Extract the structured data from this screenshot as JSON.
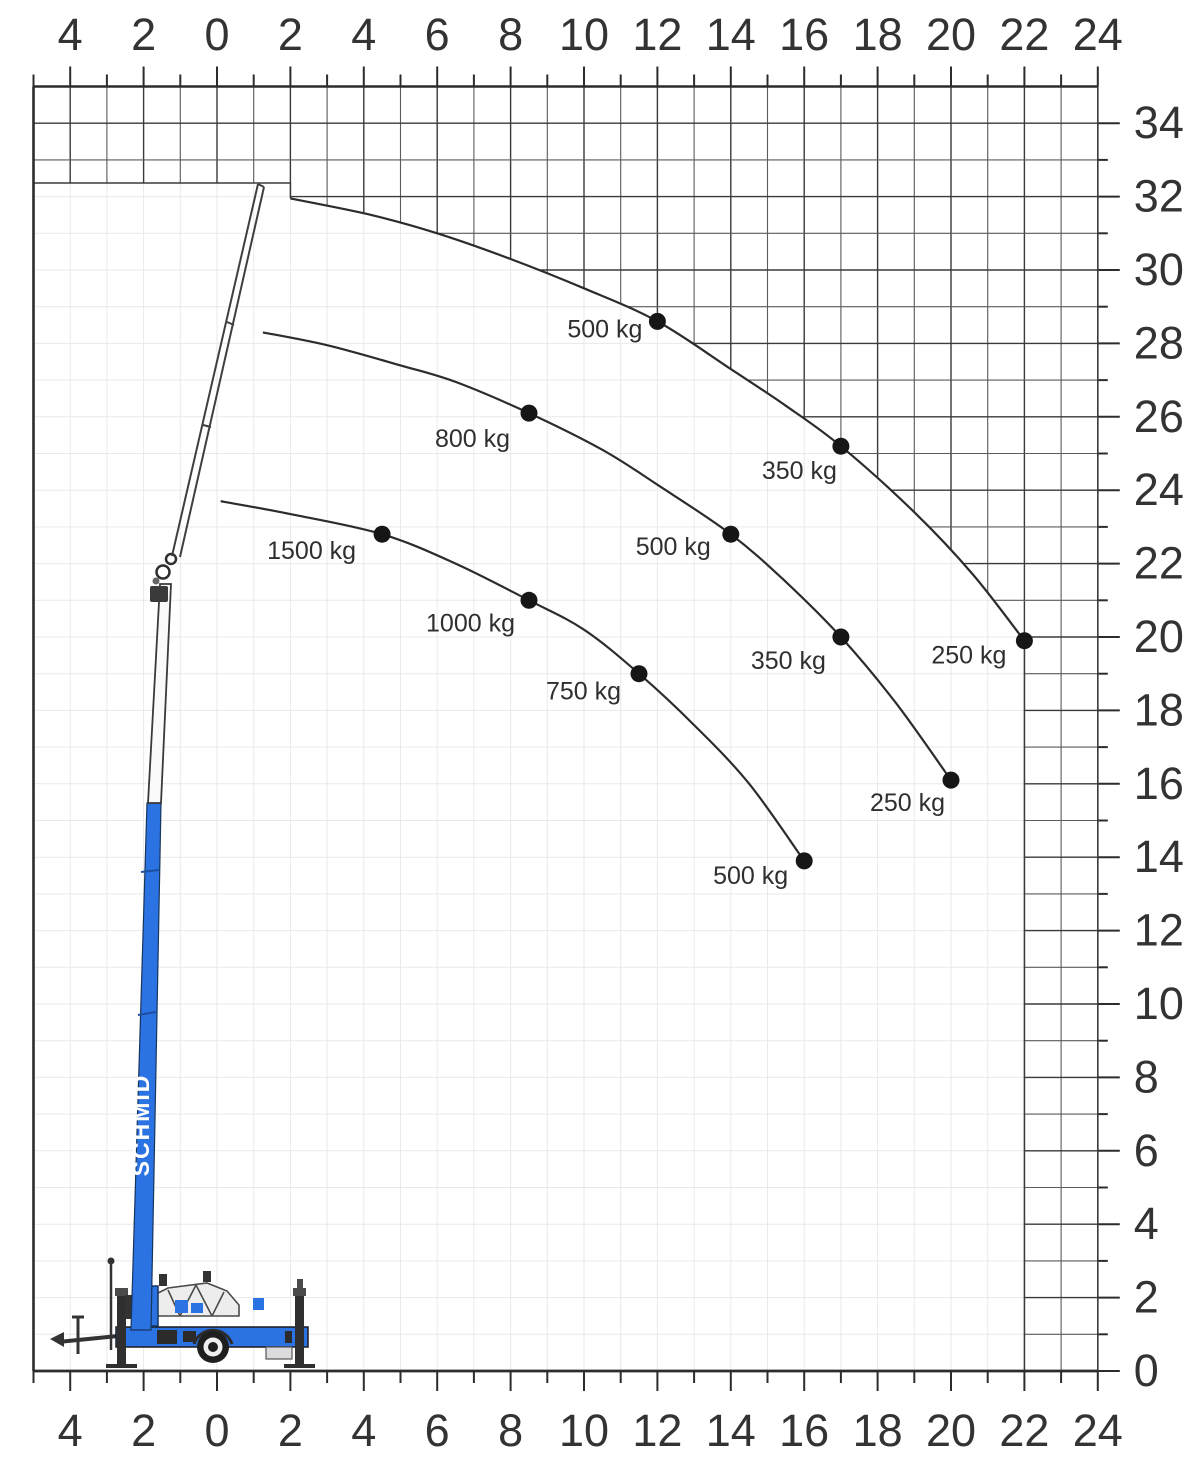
{
  "crane": {
    "brand": "SCHMID",
    "body_color": "#2b72e2"
  },
  "colors": {
    "curve": "#2c2c2c",
    "dot": "#161616",
    "grid_dark_even": "#3a3a3a",
    "grid_dark_odd": "#5c5c5c",
    "grid_faint": "#e9e9e9",
    "axis_text": "#333333",
    "border": "#2c2c2c",
    "background": "#ffffff"
  },
  "chart_data": {
    "type": "line",
    "title": "",
    "xlabel": "",
    "ylabel": "",
    "x_axis": {
      "range": [
        -5,
        24
      ],
      "minor_step": 1,
      "tick_values": [
        -4,
        -2,
        0,
        2,
        4,
        6,
        8,
        10,
        12,
        14,
        16,
        18,
        20,
        22,
        24
      ],
      "tick_labels": [
        "4",
        "2",
        "0",
        "2",
        "4",
        "6",
        "8",
        "10",
        "12",
        "14",
        "16",
        "18",
        "20",
        "22",
        "24"
      ],
      "shown_on": [
        "top",
        "bottom"
      ]
    },
    "y_axis": {
      "range": [
        0,
        35
      ],
      "minor_step": 1,
      "tick_values": [
        34,
        32,
        30,
        28,
        26,
        24,
        22,
        20,
        18,
        16,
        14,
        12,
        10,
        8,
        6,
        4,
        2,
        0
      ],
      "tick_labels": [
        "34",
        "32",
        "30",
        "28",
        "26",
        "24",
        "22",
        "20",
        "18",
        "16",
        "14",
        "12",
        "10",
        "8",
        "6",
        "4",
        "2",
        "0"
      ],
      "shown_on": [
        "right"
      ]
    },
    "grid": {
      "spacing_m": 1,
      "hatched_outside_envelope": true,
      "faint_inside_envelope": true
    },
    "series": [
      {
        "name": "working-envelope",
        "flat_top": {
          "y": 32.37,
          "x_from": -5,
          "x_to": 2
        },
        "drop_to_ground_at_x": 22,
        "points": [
          [
            2,
            31.95
          ],
          [
            4.2,
            31.5
          ],
          [
            6,
            31.0
          ],
          [
            8,
            30.3
          ],
          [
            10,
            29.5
          ],
          [
            12,
            28.6
          ],
          [
            14,
            27.3
          ],
          [
            15.5,
            26.3
          ],
          [
            17,
            25.2
          ],
          [
            19,
            23.4
          ],
          [
            20.6,
            21.7
          ],
          [
            22,
            19.9
          ]
        ],
        "labeled_points": [
          {
            "x": 12,
            "y": 28.6,
            "label": "500 kg",
            "dx": -15,
            "dy": 16
          },
          {
            "x": 17,
            "y": 25.2,
            "label": "350 kg",
            "dx": -4,
            "dy": 33
          },
          {
            "x": 22,
            "y": 19.9,
            "label": "250 kg",
            "dx": -18,
            "dy": 23
          }
        ]
      },
      {
        "name": "capacity-curve-middle",
        "points": [
          [
            1.25,
            28.3
          ],
          [
            3,
            27.95
          ],
          [
            5,
            27.4
          ],
          [
            6.5,
            26.95
          ],
          [
            8.5,
            26.1
          ],
          [
            10.5,
            25.1
          ],
          [
            12,
            24.15
          ],
          [
            14,
            22.8
          ],
          [
            15.5,
            21.5
          ],
          [
            17,
            20.0
          ],
          [
            18.5,
            18.2
          ],
          [
            20,
            16.1
          ]
        ],
        "labeled_points": [
          {
            "x": 8.5,
            "y": 26.1,
            "label": "800 kg",
            "dx": -19,
            "dy": 34
          },
          {
            "x": 14,
            "y": 22.8,
            "label": "500 kg",
            "dx": -20,
            "dy": 21
          },
          {
            "x": 17,
            "y": 20.0,
            "label": "350 kg",
            "dx": -15,
            "dy": 32
          },
          {
            "x": 20,
            "y": 16.1,
            "label": "250 kg",
            "dx": -6,
            "dy": 31
          }
        ]
      },
      {
        "name": "capacity-curve-inner",
        "points": [
          [
            0.1,
            23.7
          ],
          [
            2,
            23.35
          ],
          [
            4.5,
            22.8
          ],
          [
            6.5,
            22.0
          ],
          [
            8.5,
            21.0
          ],
          [
            10,
            20.2
          ],
          [
            11.5,
            19.0
          ],
          [
            13,
            17.6
          ],
          [
            14.5,
            16.0
          ],
          [
            16,
            13.9
          ]
        ],
        "labeled_points": [
          {
            "x": 4.5,
            "y": 22.8,
            "label": "1500 kg",
            "dx": -26,
            "dy": 25
          },
          {
            "x": 8.5,
            "y": 21.0,
            "label": "1000 kg",
            "dx": -14,
            "dy": 31
          },
          {
            "x": 11.5,
            "y": 19.0,
            "label": "750 kg",
            "dx": -18,
            "dy": 26
          },
          {
            "x": 16,
            "y": 13.9,
            "label": "500 kg",
            "dx": -16,
            "dy": 23
          }
        ]
      }
    ]
  }
}
